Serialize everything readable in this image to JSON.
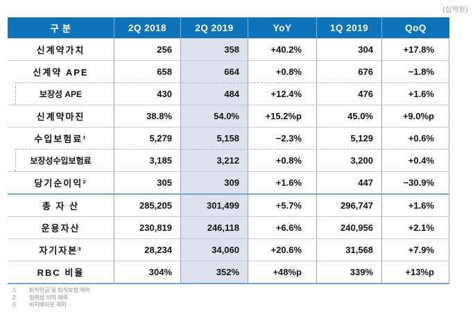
{
  "unit_label": "(십억원)",
  "table": {
    "columns": [
      "구 분",
      "2Q 2018",
      "2Q 2019",
      "YoY",
      "1Q 2019",
      "QoQ"
    ],
    "highlighted_column": "2Q 2019",
    "rows": [
      {
        "label": "신계약가치",
        "indent": false,
        "section_start": false,
        "values": [
          "256",
          "358",
          "+40.2%",
          "304",
          "+17.8%"
        ]
      },
      {
        "label": "신계약 APE",
        "indent": false,
        "section_start": false,
        "values": [
          "658",
          "664",
          "+0.8%",
          "676",
          "−1.8%"
        ]
      },
      {
        "label": "보장성 APE",
        "indent": true,
        "section_start": false,
        "values": [
          "430",
          "484",
          "+12.4%",
          "476",
          "+1.6%"
        ]
      },
      {
        "label": "신계약마진",
        "indent": false,
        "section_start": false,
        "values": [
          "38.8%",
          "54.0%",
          "+15.2%p",
          "45.0%",
          "+9.0%p"
        ]
      },
      {
        "label": "수입보험료¹",
        "indent": false,
        "section_start": false,
        "values": [
          "5,279",
          "5,158",
          "−2.3%",
          "5,129",
          "+0.6%"
        ]
      },
      {
        "label": "보장성수입보험료",
        "indent": true,
        "section_start": false,
        "values": [
          "3,185",
          "3,212",
          "+0.8%",
          "3,200",
          "+0.4%"
        ]
      },
      {
        "label": "당기순이익²",
        "indent": false,
        "section_start": false,
        "values": [
          "305",
          "309",
          "+1.6%",
          "447",
          "−30.9%"
        ]
      },
      {
        "label": "총 자 산",
        "indent": false,
        "section_start": true,
        "values": [
          "285,205",
          "301,499",
          "+5.7%",
          "296,747",
          "+1.6%"
        ]
      },
      {
        "label": "운용자산",
        "indent": false,
        "section_start": false,
        "values": [
          "230,819",
          "246,118",
          "+6.6%",
          "240,956",
          "+2.1%"
        ]
      },
      {
        "label": "자기자본³",
        "indent": false,
        "section_start": false,
        "values": [
          "28,234",
          "34,060",
          "+20.6%",
          "31,568",
          "+7.9%"
        ]
      },
      {
        "label": "RBC 비율",
        "indent": false,
        "section_start": false,
        "values": [
          "304%",
          "352%",
          "+48%p",
          "339%",
          "+13%p"
        ]
      }
    ]
  },
  "footnotes": [
    {
      "num": "1.",
      "text": "퇴직연금 및 퇴직보험 제외"
    },
    {
      "num": "2.",
      "text": "일회성 이익 제외"
    },
    {
      "num": "3.",
      "text": "비지배지분 제외"
    }
  ],
  "colors": {
    "header_bg": "#0e73b9",
    "highlight_bg": "#dde3ee",
    "section_line": "#6ea6cf",
    "row_line": "#c9c9c9",
    "column_line": "#a3a3a3",
    "footnote_text": "#8a8a8a"
  }
}
